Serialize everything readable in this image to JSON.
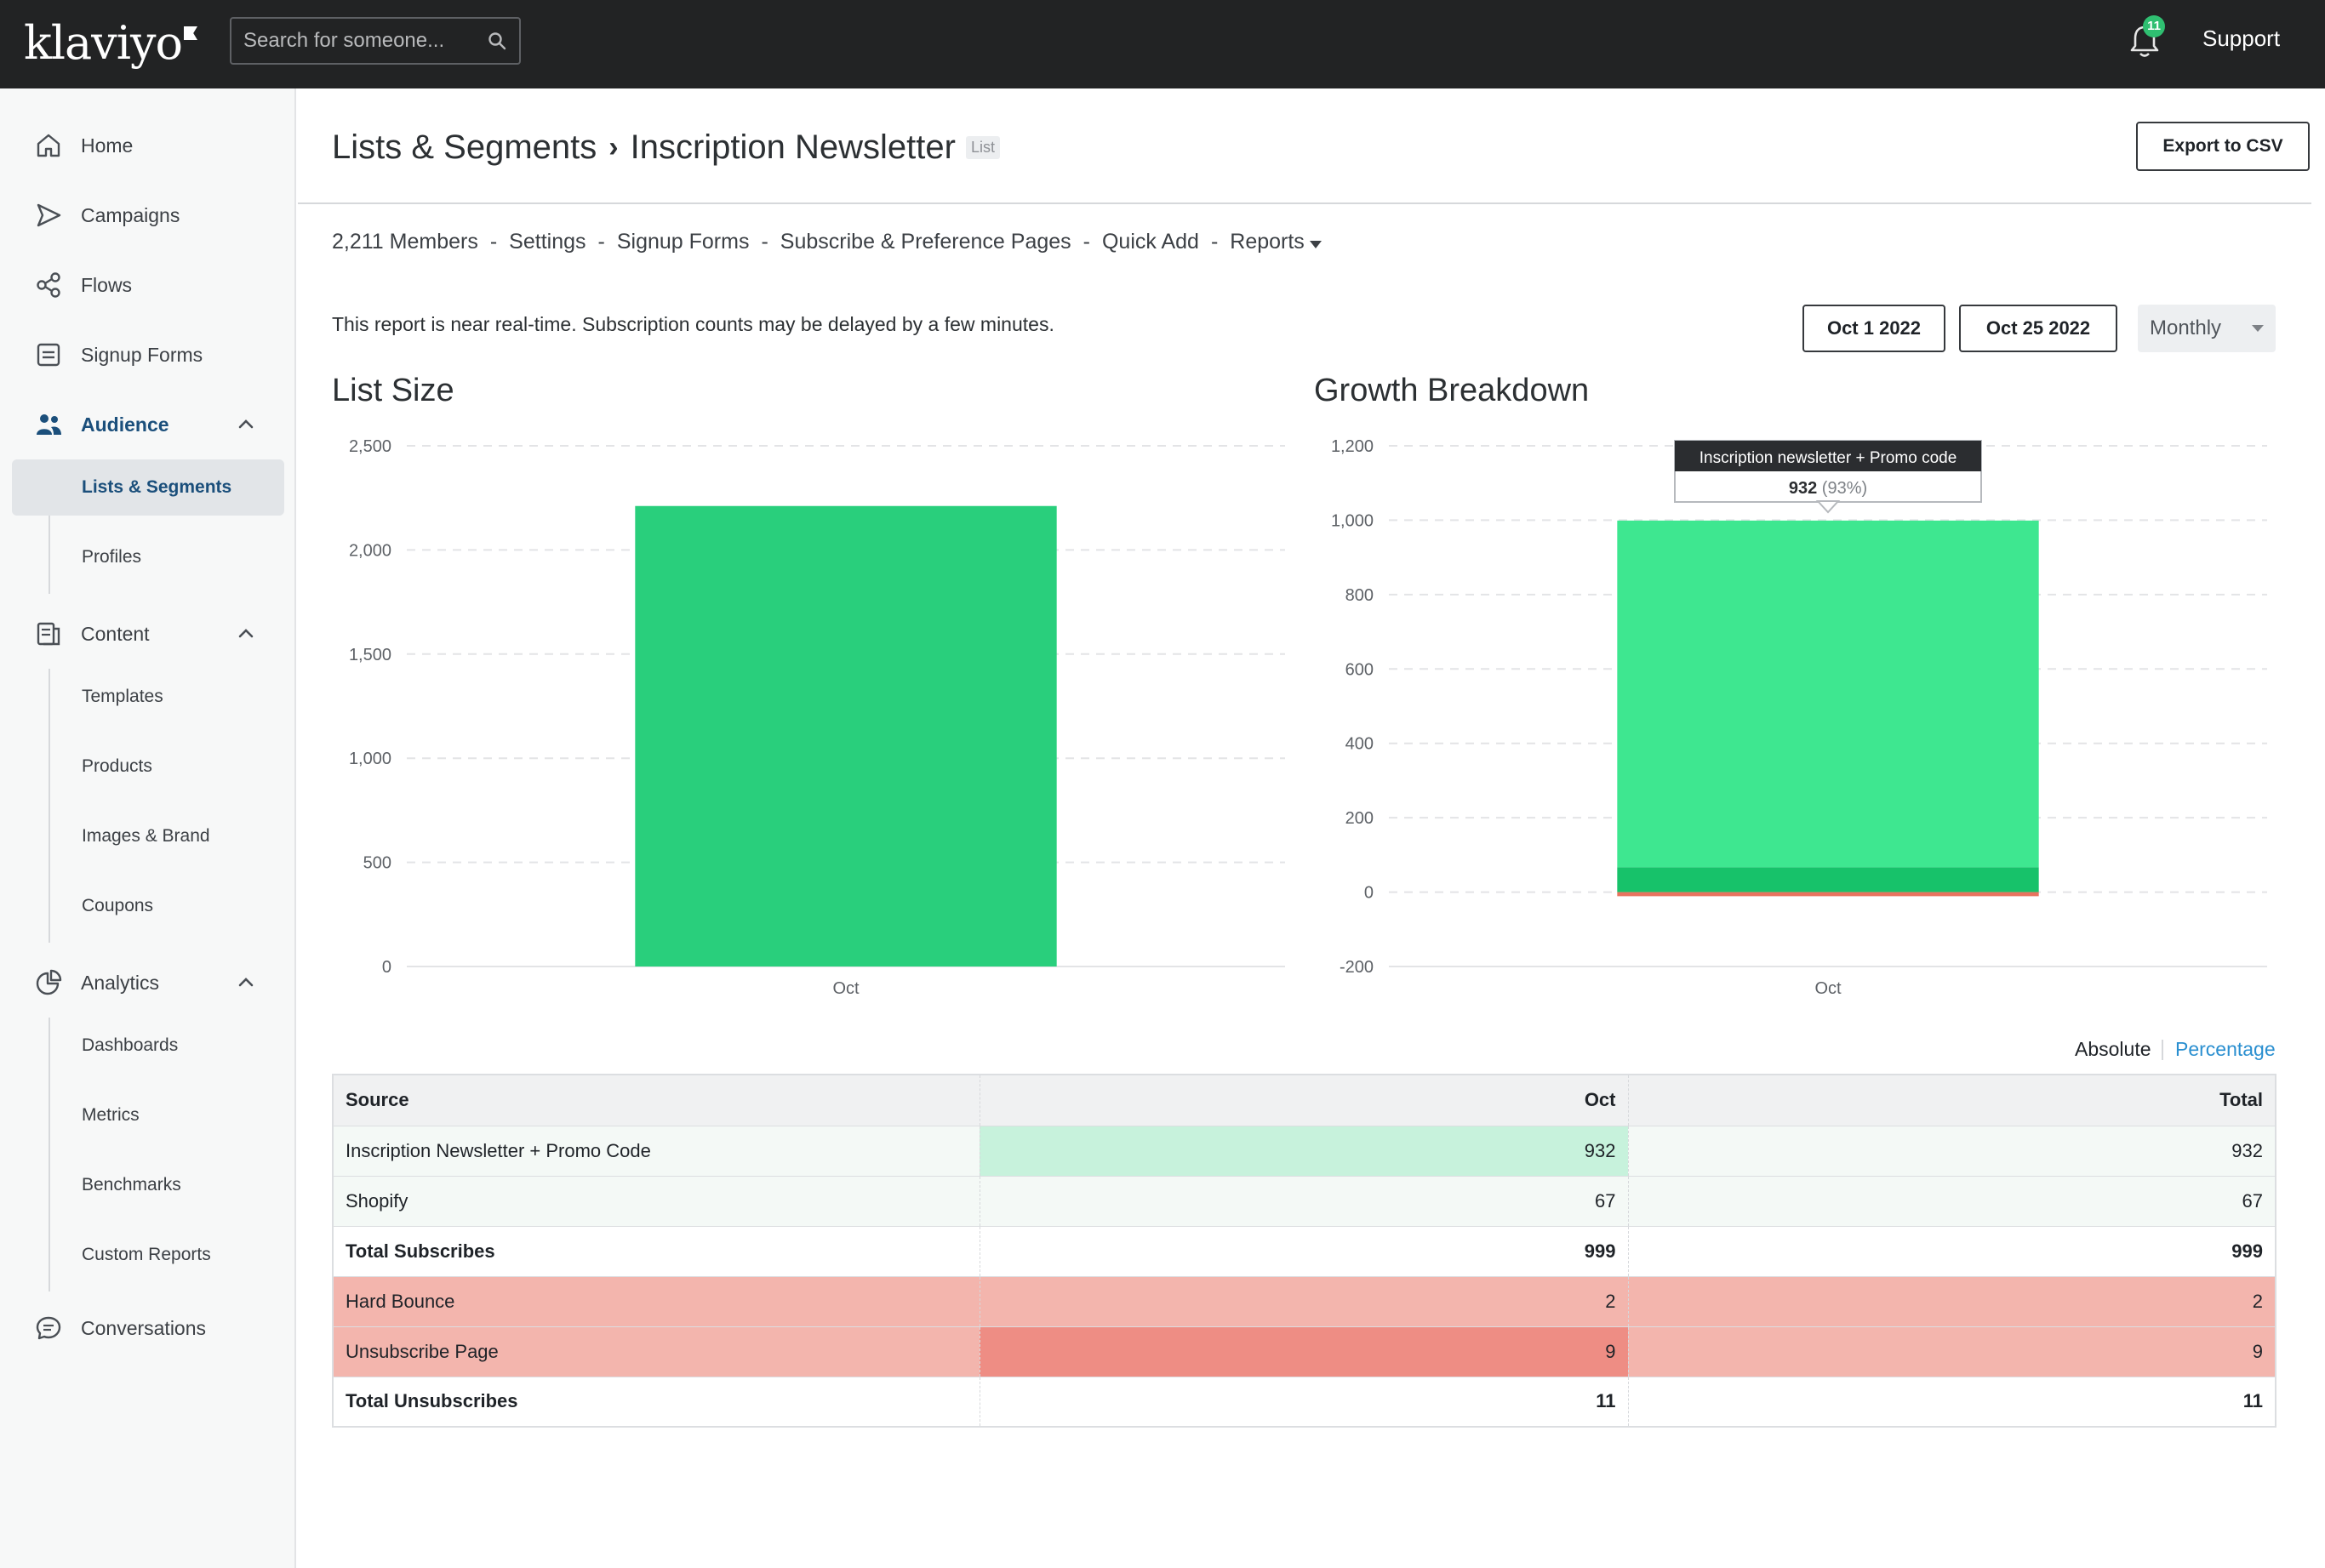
{
  "app": {
    "logo": "klaviyo",
    "brand_color": "#222324"
  },
  "topbar": {
    "search_placeholder": "Search for someone...",
    "notification_count": "11",
    "support_label": "Support"
  },
  "sidebar": {
    "items": [
      {
        "label": "Home",
        "icon": "home-icon"
      },
      {
        "label": "Campaigns",
        "icon": "send-icon"
      },
      {
        "label": "Flows",
        "icon": "flow-icon"
      },
      {
        "label": "Signup Forms",
        "icon": "form-icon"
      },
      {
        "label": "Audience",
        "icon": "people-icon"
      },
      {
        "label": "Content",
        "icon": "document-icon"
      },
      {
        "label": "Analytics",
        "icon": "pie-chart-icon"
      },
      {
        "label": "Conversations",
        "icon": "chat-icon"
      }
    ],
    "audience_sub": [
      "Lists & Segments",
      "Profiles"
    ],
    "content_sub": [
      "Templates",
      "Products",
      "Images & Brand",
      "Coupons"
    ],
    "analytics_sub": [
      "Dashboards",
      "Metrics",
      "Benchmarks",
      "Custom Reports"
    ]
  },
  "page": {
    "breadcrumb_root": "Lists & Segments",
    "breadcrumb_current": "Inscription Newsletter",
    "tag": "List",
    "export_label": "Export to CSV",
    "subnav": [
      "2,211 Members",
      "Settings",
      "Signup Forms",
      "Subscribe & Preference Pages",
      "Quick Add",
      "Reports"
    ],
    "notice": "This report is near real-time. Subscription counts may be delayed by a few minutes.",
    "date_start": "Oct 1 2022",
    "date_end": "Oct 25 2022",
    "period": "Monthly",
    "toggle_absolute": "Absolute",
    "toggle_percentage": "Percentage"
  },
  "chart_data": [
    {
      "type": "bar",
      "title": "List Size",
      "categories": [
        "Oct"
      ],
      "values": [
        2211
      ],
      "ylim": [
        0,
        2500
      ],
      "yticks": [
        "2,500",
        "2,000",
        "1,500",
        "1,000",
        "500",
        "0"
      ],
      "ytick_values": [
        2500,
        2000,
        1500,
        1000,
        500,
        0
      ],
      "color": "#29cf7c"
    },
    {
      "type": "bar",
      "title": "Growth Breakdown",
      "stacked": true,
      "categories": [
        "Oct"
      ],
      "series": [
        {
          "values": [
            67
          ],
          "color": "#17c26a"
        },
        {
          "values": [
            932
          ],
          "color": "#3ee790"
        },
        {
          "values": [
            -11
          ],
          "color": "#e8735f"
        }
      ],
      "ylim": [
        -200,
        1200
      ],
      "yticks": [
        "1,200",
        "1,000",
        "800",
        "600",
        "400",
        "200",
        "0",
        "-200"
      ],
      "ytick_values": [
        1200,
        1000,
        800,
        600,
        400,
        200,
        0,
        -200
      ],
      "tooltip": {
        "title": "Inscription newsletter + Promo code",
        "value": "932",
        "pct": "(93%)"
      }
    }
  ],
  "table": {
    "headers": [
      "Source",
      "Oct",
      "Total"
    ],
    "rows": [
      {
        "source": "Inscription Newsletter + Promo Code",
        "oct": "932",
        "total": "932"
      },
      {
        "source": "Shopify",
        "oct": "67",
        "total": "67"
      },
      {
        "source": "Total Subscribes",
        "oct": "999",
        "total": "999"
      },
      {
        "source": "Hard Bounce",
        "oct": "2",
        "total": "2"
      },
      {
        "source": "Unsubscribe Page",
        "oct": "9",
        "total": "9"
      },
      {
        "source": "Total Unsubscribes",
        "oct": "11",
        "total": "11"
      }
    ]
  }
}
